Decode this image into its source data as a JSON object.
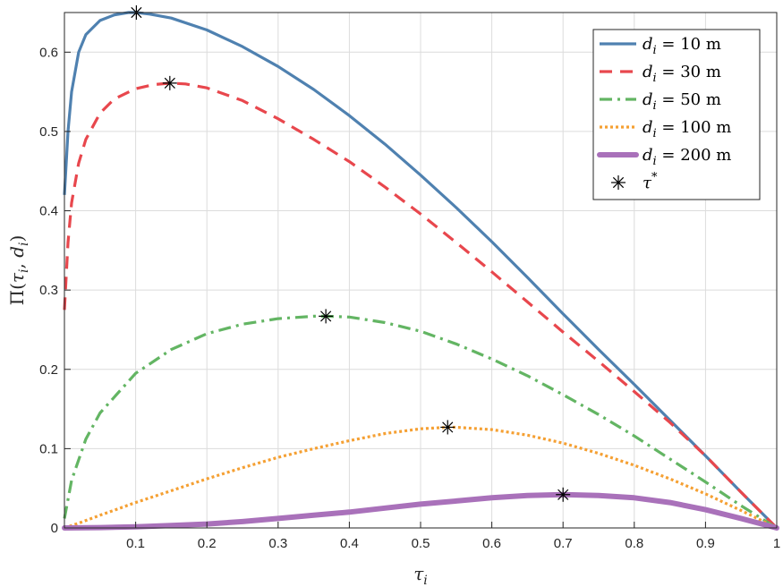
{
  "chart_data": {
    "type": "line",
    "title": "",
    "xlabel": "τ_i",
    "ylabel": "Π(τ_i, d_i)",
    "xlim": [
      0,
      1
    ],
    "ylim": [
      0,
      0.65
    ],
    "xticks": [
      0.1,
      0.2,
      0.3,
      0.4,
      0.5,
      0.6,
      0.7,
      0.8,
      0.9,
      1
    ],
    "yticks": [
      0,
      0.1,
      0.2,
      0.3,
      0.4,
      0.5,
      0.6
    ],
    "xtick_labels": [
      "0.1",
      "0.2",
      "0.3",
      "0.4",
      "0.5",
      "0.6",
      "0.7",
      "0.8",
      "0.9",
      "1"
    ],
    "ytick_labels": [
      "0",
      "0.1",
      "0.2",
      "0.3",
      "0.4",
      "0.5",
      "0.6"
    ],
    "grid": true,
    "legend_position": "top-right",
    "series": [
      {
        "name": "d_i = 10 m",
        "legend_var": "d",
        "legend_sub": "i",
        "legend_rest": " = 10 m",
        "color": "#4f81b0",
        "style": "solid",
        "x": [
          0.0,
          0.005,
          0.01,
          0.02,
          0.03,
          0.05,
          0.07,
          0.09,
          0.101,
          0.12,
          0.15,
          0.2,
          0.25,
          0.3,
          0.35,
          0.4,
          0.45,
          0.5,
          0.55,
          0.6,
          0.65,
          0.7,
          0.75,
          0.8,
          0.85,
          0.9,
          0.95,
          1.0
        ],
        "y": [
          0.42,
          0.5,
          0.55,
          0.6,
          0.622,
          0.64,
          0.647,
          0.65,
          0.65,
          0.648,
          0.643,
          0.628,
          0.607,
          0.582,
          0.553,
          0.52,
          0.484,
          0.445,
          0.404,
          0.361,
          0.316,
          0.27,
          0.225,
          0.181,
          0.136,
          0.091,
          0.045,
          0.0
        ]
      },
      {
        "name": "d_i = 30 m",
        "legend_var": "d",
        "legend_sub": "i",
        "legend_rest": " = 30 m",
        "color": "#e8474d",
        "style": "dashed",
        "x": [
          0.0,
          0.005,
          0.01,
          0.02,
          0.03,
          0.05,
          0.07,
          0.1,
          0.125,
          0.148,
          0.17,
          0.2,
          0.25,
          0.3,
          0.35,
          0.4,
          0.45,
          0.5,
          0.55,
          0.6,
          0.65,
          0.7,
          0.75,
          0.8,
          0.85,
          0.9,
          0.95,
          1.0
        ],
        "y": [
          0.275,
          0.36,
          0.41,
          0.46,
          0.49,
          0.523,
          0.541,
          0.554,
          0.559,
          0.561,
          0.56,
          0.555,
          0.539,
          0.516,
          0.49,
          0.462,
          0.43,
          0.396,
          0.36,
          0.323,
          0.285,
          0.247,
          0.21,
          0.172,
          0.133,
          0.091,
          0.045,
          0.0
        ]
      },
      {
        "name": "d_i = 50 m",
        "legend_var": "d",
        "legend_sub": "i",
        "legend_rest": " = 50 m",
        "color": "#63b563",
        "style": "dashdot",
        "x": [
          0.0,
          0.01,
          0.03,
          0.05,
          0.1,
          0.15,
          0.2,
          0.25,
          0.3,
          0.35,
          0.367,
          0.4,
          0.45,
          0.5,
          0.55,
          0.6,
          0.65,
          0.7,
          0.75,
          0.8,
          0.85,
          0.9,
          0.95,
          1.0
        ],
        "y": [
          0.012,
          0.06,
          0.112,
          0.145,
          0.195,
          0.225,
          0.245,
          0.257,
          0.264,
          0.267,
          0.267,
          0.266,
          0.259,
          0.248,
          0.232,
          0.213,
          0.192,
          0.168,
          0.143,
          0.116,
          0.087,
          0.058,
          0.028,
          0.0
        ]
      },
      {
        "name": "d_i = 100 m",
        "legend_var": "d",
        "legend_sub": "i",
        "legend_rest": " = 100 m",
        "color": "#f5a033",
        "style": "dotted",
        "x": [
          0.0,
          0.02,
          0.05,
          0.1,
          0.15,
          0.2,
          0.25,
          0.3,
          0.35,
          0.4,
          0.45,
          0.5,
          0.538,
          0.55,
          0.6,
          0.65,
          0.7,
          0.75,
          0.8,
          0.85,
          0.9,
          0.95,
          1.0
        ],
        "y": [
          0.0,
          0.006,
          0.016,
          0.032,
          0.047,
          0.062,
          0.076,
          0.089,
          0.1,
          0.11,
          0.119,
          0.125,
          0.127,
          0.127,
          0.124,
          0.117,
          0.107,
          0.094,
          0.079,
          0.062,
          0.043,
          0.022,
          0.0
        ]
      },
      {
        "name": "d_i = 200 m",
        "legend_var": "d",
        "legend_sub": "i",
        "legend_rest": " = 200 m",
        "color": "#a971ba",
        "style": "thick",
        "x": [
          0.0,
          0.05,
          0.1,
          0.15,
          0.2,
          0.25,
          0.3,
          0.35,
          0.4,
          0.45,
          0.5,
          0.55,
          0.6,
          0.65,
          0.7,
          0.75,
          0.8,
          0.85,
          0.9,
          0.95,
          1.0
        ],
        "y": [
          0.0,
          0.0005,
          0.0015,
          0.003,
          0.005,
          0.008,
          0.012,
          0.016,
          0.02,
          0.025,
          0.03,
          0.034,
          0.038,
          0.041,
          0.042,
          0.041,
          0.038,
          0.032,
          0.023,
          0.012,
          0.0
        ]
      }
    ],
    "optimum_points": {
      "name": "τ*",
      "legend_var": "τ",
      "legend_sup": "*",
      "x": [
        0.101,
        0.148,
        0.367,
        0.538,
        0.7
      ],
      "y": [
        0.65,
        0.561,
        0.267,
        0.127,
        0.042
      ]
    }
  }
}
